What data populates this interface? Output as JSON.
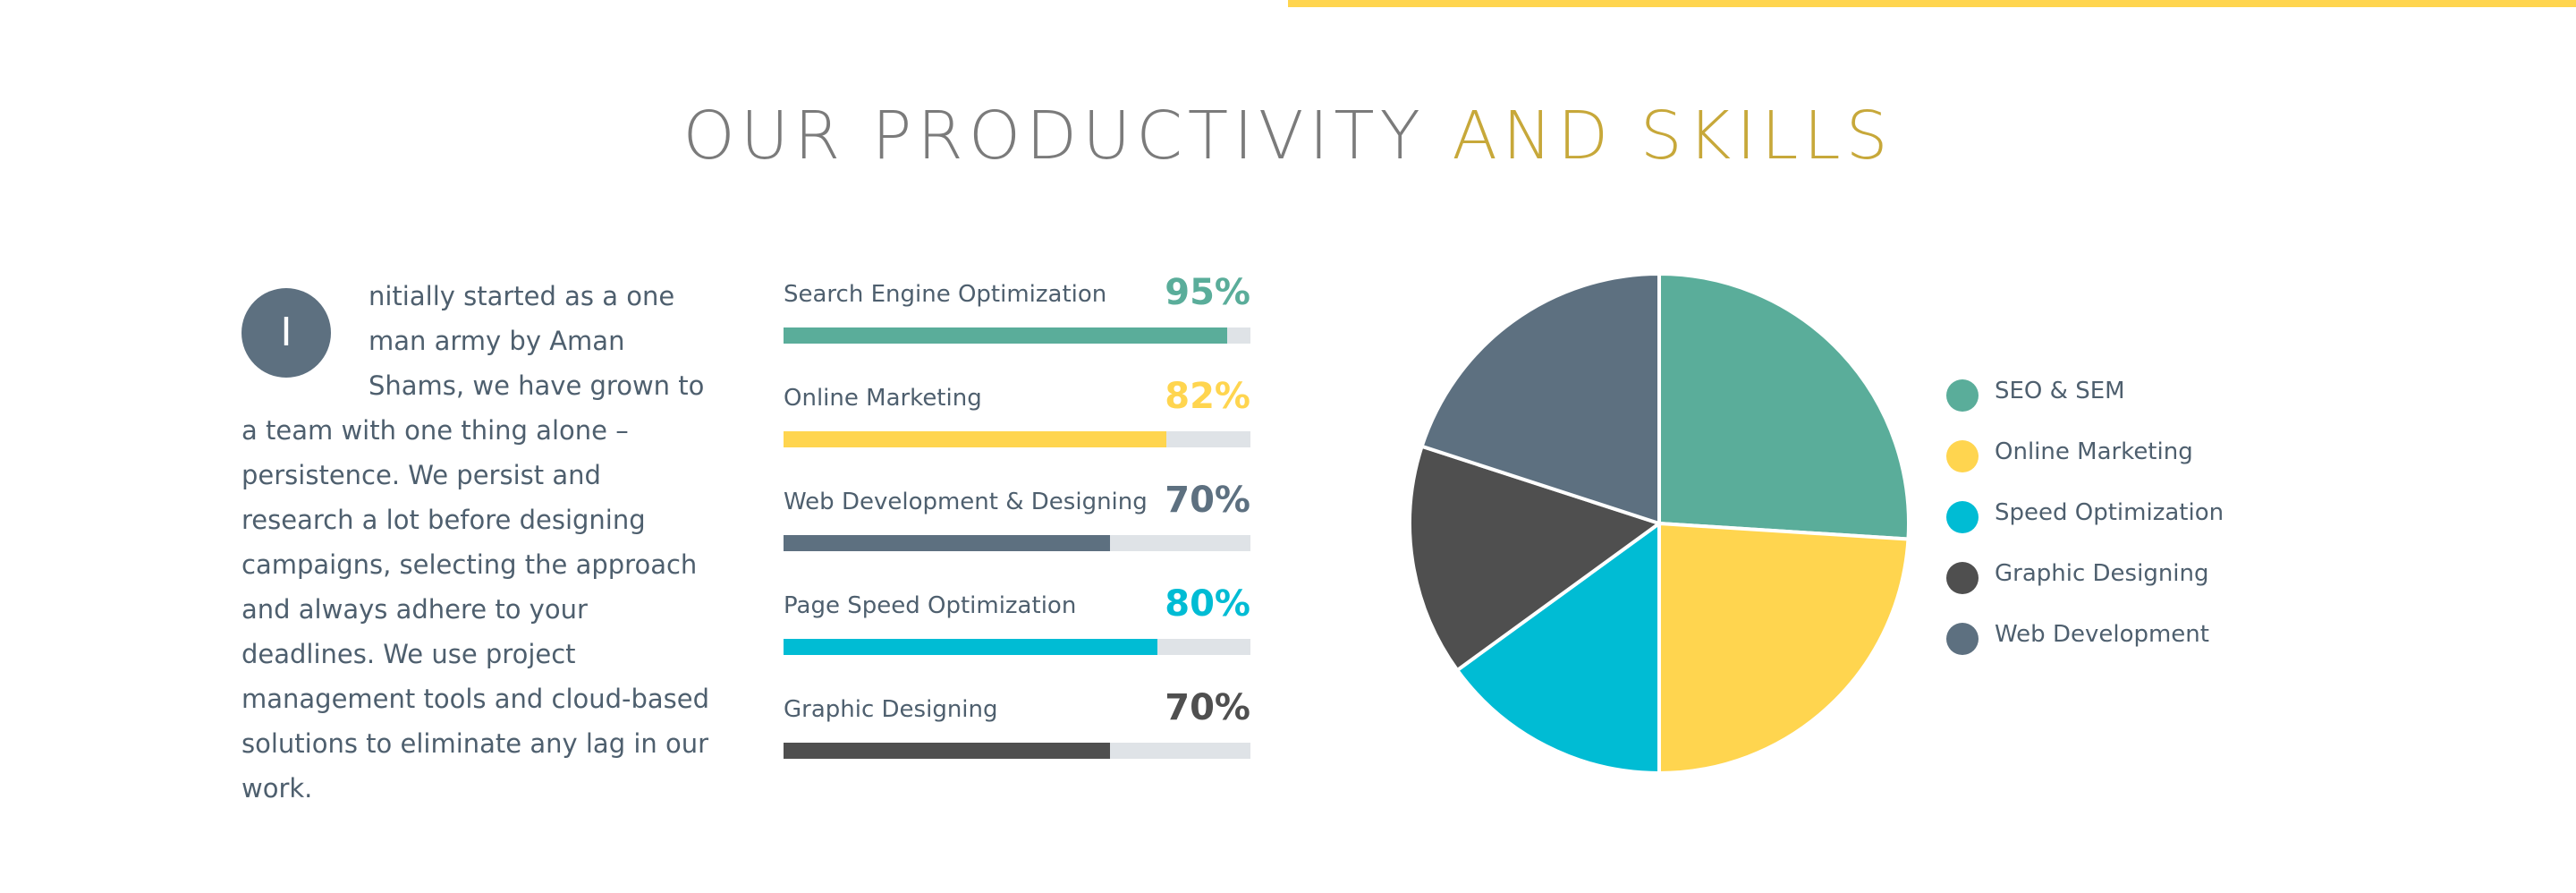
{
  "accent_color": "#ffd54f",
  "heading": {
    "part1": "OUR PRODUCTIVITY",
    "part2": "AND SKILLS",
    "color_dark": "#7b7b7b",
    "color_gold": "#c7a83a"
  },
  "intro": {
    "drop_cap": "I",
    "drop_cap_color": "#5d7080",
    "text": "nitially started as a one man army by Aman Shams, we have grown to a team with one thing alone – persistence. We persist and research a lot before designing campaigns, selecting the approach and always adhere to your deadlines. We use project management tools and cloud-based solutions to eliminate any lag in our work."
  },
  "skills": [
    {
      "label": "Search Engine Optimization",
      "percent_text": "95%",
      "value": 95,
      "color": "#5aad9a"
    },
    {
      "label": "Online Marketing",
      "percent_text": "82%",
      "value": 82,
      "color": "#ffd54f"
    },
    {
      "label": "Web Development & Designing",
      "percent_text": "70%",
      "value": 70,
      "color": "#5d7080"
    },
    {
      "label": "Page Speed Optimization",
      "percent_text": "80%",
      "value": 80,
      "color": "#00bcd4"
    },
    {
      "label": "Graphic Designing",
      "percent_text": "70%",
      "value": 70,
      "color": "#4f4f4f"
    }
  ],
  "chart_data": {
    "type": "pie",
    "categories": [
      "SEO & SEM",
      "Online Marketing",
      "Speed Optimization",
      "Graphic Designing",
      "Web Development"
    ],
    "values": [
      26,
      24,
      15,
      15,
      20
    ],
    "colors": [
      "#5aad9a",
      "#ffd54f",
      "#00bcd4",
      "#4f4f4f",
      "#5d7080"
    ],
    "legend": "right"
  }
}
